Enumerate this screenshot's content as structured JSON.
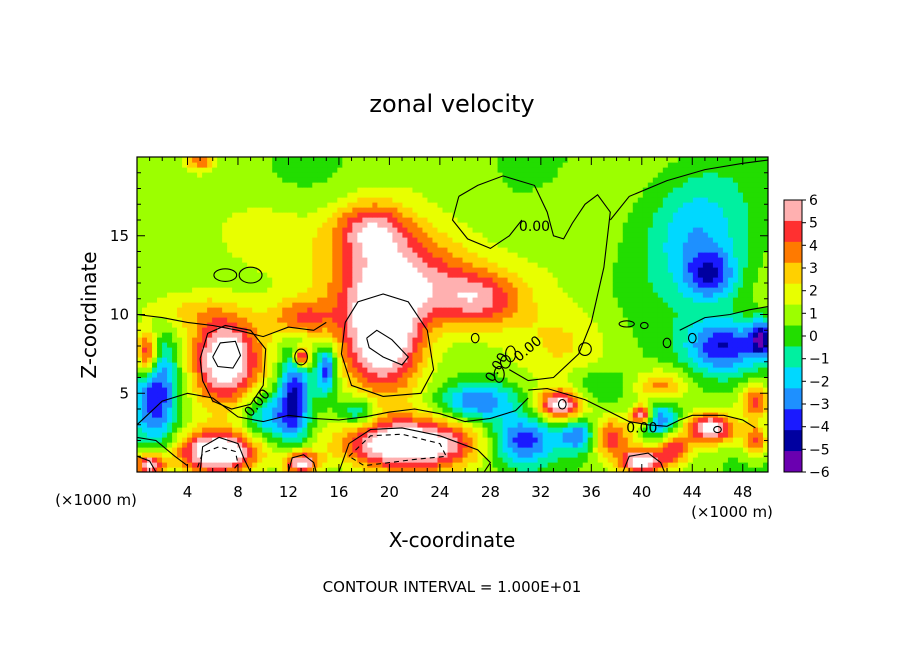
{
  "chart_data": {
    "type": "heatmap",
    "title": "zonal velocity",
    "xlabel": "X-coordinate",
    "ylabel": "Z-coordinate",
    "x_unit": "(×1000 m)",
    "y_unit": "(×1000 m)",
    "xlim": [
      0,
      50
    ],
    "ylim": [
      0,
      20
    ],
    "x_ticks": [
      "4",
      "8",
      "12",
      "16",
      "20",
      "24",
      "28",
      "32",
      "36",
      "40",
      "44",
      "48"
    ],
    "y_ticks": [
      "5",
      "10",
      "15"
    ],
    "colorbar": {
      "range": [
        -6,
        6
      ],
      "labels": [
        "6",
        "5",
        "4",
        "3",
        "2",
        "1",
        "0",
        "−1",
        "−2",
        "−3",
        "−4",
        "−5",
        "−6"
      ],
      "colors": [
        "#ffb0b0",
        "#ff3030",
        "#ff7a00",
        "#ffd000",
        "#e8ff00",
        "#9cff00",
        "#22dd00",
        "#00f0a0",
        "#00d8ff",
        "#1e90ff",
        "#1a1aff",
        "#0000a0",
        "#6a00b0"
      ]
    },
    "contour_labels": [
      "0.00",
      "0.00",
      "0.00",
      "0.00",
      "0.00"
    ],
    "footnote": "CONTOUR INTERVAL = 1.000E+01",
    "features": [
      {
        "x": 19.5,
        "y": 8.5,
        "value": 7,
        "rx": 3.2,
        "ry": 3.5
      },
      {
        "x": 7.0,
        "y": 7.2,
        "value": 7,
        "rx": 2.8,
        "ry": 2.8
      },
      {
        "x": 6.5,
        "y": 1.3,
        "value": 7,
        "rx": 3.2,
        "ry": 1.3
      },
      {
        "x": 21.5,
        "y": 1.8,
        "value": 7,
        "rx": 5.5,
        "ry": 1.6
      },
      {
        "x": 13.0,
        "y": 0.6,
        "value": 6,
        "rx": 1.4,
        "ry": 0.8
      },
      {
        "x": 1.0,
        "y": 0.5,
        "value": 6,
        "rx": 1.2,
        "ry": 0.8
      },
      {
        "x": 0.8,
        "y": 7.5,
        "value": 6,
        "rx": 0.9,
        "ry": 1.5
      },
      {
        "x": 13.0,
        "y": 7.3,
        "value": 6,
        "rx": 0.6,
        "ry": 0.6
      },
      {
        "x": 45.5,
        "y": 2.8,
        "value": 6,
        "rx": 2.0,
        "ry": 1.0
      },
      {
        "x": 33.5,
        "y": 4.3,
        "value": 6,
        "rx": 1.8,
        "ry": 1.0
      },
      {
        "x": 40.0,
        "y": 3.7,
        "value": 6,
        "rx": 0.8,
        "ry": 0.6
      },
      {
        "x": 40.0,
        "y": 0.7,
        "value": 6,
        "rx": 1.6,
        "ry": 0.8
      },
      {
        "x": 37.5,
        "y": 2.2,
        "value": 4,
        "rx": 1.6,
        "ry": 1.2
      },
      {
        "x": 42.5,
        "y": 1.5,
        "value": 4,
        "rx": 1.2,
        "ry": 1.0
      },
      {
        "x": 49.0,
        "y": 2.0,
        "value": 4,
        "rx": 1.0,
        "ry": 1.0
      },
      {
        "x": 41.5,
        "y": 5.5,
        "value": 3,
        "rx": 2.0,
        "ry": 1.0
      },
      {
        "x": 49.0,
        "y": 4.5,
        "value": 4,
        "rx": 1.2,
        "ry": 1.0
      },
      {
        "x": 21.0,
        "y": 12.5,
        "value": 5,
        "rx": 5.5,
        "ry": 3.0
      },
      {
        "x": 18.5,
        "y": 15.5,
        "value": 4,
        "rx": 3.0,
        "ry": 1.8
      },
      {
        "x": 27.0,
        "y": 11.0,
        "value": 4,
        "rx": 3.5,
        "ry": 1.8
      },
      {
        "x": 13.0,
        "y": 9.8,
        "value": 3,
        "rx": 2.5,
        "ry": 1.2
      },
      {
        "x": 3.5,
        "y": 10.3,
        "value": 2,
        "rx": 3.5,
        "ry": 1.5
      },
      {
        "x": 10.0,
        "y": 15.0,
        "value": 1.5,
        "rx": 4.0,
        "ry": 2.0
      },
      {
        "x": 5.0,
        "y": 19.8,
        "value": 3,
        "rx": 1.0,
        "ry": 0.6
      },
      {
        "x": 35.0,
        "y": 15.5,
        "value": 0.5,
        "rx": 3.0,
        "ry": 3.0
      },
      {
        "x": 34.0,
        "y": 8.0,
        "value": 1.5,
        "rx": 4.0,
        "ry": 2.5
      },
      {
        "x": 44.5,
        "y": 15.0,
        "value": -3,
        "rx": 4.0,
        "ry": 4.0
      },
      {
        "x": 45.5,
        "y": 12.5,
        "value": -3.5,
        "rx": 2.0,
        "ry": 1.5
      },
      {
        "x": 46.5,
        "y": 8.0,
        "value": -5,
        "rx": 3.0,
        "ry": 1.8
      },
      {
        "x": 49.5,
        "y": 8.5,
        "value": -5,
        "rx": 1.0,
        "ry": 1.2
      },
      {
        "x": 1.5,
        "y": 5.0,
        "value": -5,
        "rx": 1.8,
        "ry": 3.5
      },
      {
        "x": 12.5,
        "y": 5.0,
        "value": -5,
        "rx": 1.2,
        "ry": 2.8
      },
      {
        "x": 15.0,
        "y": 6.5,
        "value": -5,
        "rx": 0.8,
        "ry": 1.5
      },
      {
        "x": 10.5,
        "y": 3.5,
        "value": -3,
        "rx": 2.0,
        "ry": 1.5
      },
      {
        "x": 27.0,
        "y": 4.5,
        "value": -4,
        "rx": 3.0,
        "ry": 1.2
      },
      {
        "x": 30.5,
        "y": 2.0,
        "value": -4.5,
        "rx": 2.5,
        "ry": 1.5
      },
      {
        "x": 35.0,
        "y": 2.3,
        "value": -4,
        "rx": 1.5,
        "ry": 1.0
      },
      {
        "x": 41.5,
        "y": 3.3,
        "value": -4,
        "rx": 1.5,
        "ry": 1.2
      },
      {
        "x": 17.5,
        "y": 3.8,
        "value": -3,
        "rx": 1.5,
        "ry": 1.0
      },
      {
        "x": 36.5,
        "y": 5.5,
        "value": -1.5,
        "rx": 2.5,
        "ry": 1.2
      }
    ],
    "contours": [
      {
        "style": "solid",
        "points": [
          [
            25.5,
            17.5
          ],
          [
            27.0,
            18.2
          ],
          [
            29.0,
            18.8
          ],
          [
            31.5,
            18.2
          ],
          [
            32.5,
            16.5
          ],
          [
            33.0,
            15.0
          ],
          [
            33.8,
            14.8
          ],
          [
            34.5,
            15.8
          ],
          [
            35.5,
            17.0
          ],
          [
            36.5,
            17.6
          ],
          [
            37.5,
            16.5
          ],
          [
            37.0,
            13.0
          ],
          [
            36.0,
            9.5
          ],
          [
            35.0,
            7.5
          ],
          [
            33.0,
            6.0
          ],
          [
            31.0,
            5.8
          ],
          [
            29.5,
            6.5
          ]
        ]
      },
      {
        "style": "solid",
        "points": [
          [
            25.5,
            17.5
          ],
          [
            25.0,
            16.0
          ],
          [
            26.2,
            14.8
          ],
          [
            28.0,
            14.2
          ],
          [
            29.5,
            15.0
          ],
          [
            30.5,
            16.0
          ]
        ]
      },
      {
        "style": "solid",
        "points": [
          [
            37.5,
            16.0
          ],
          [
            39.0,
            17.5
          ],
          [
            42.0,
            18.5
          ],
          [
            45.0,
            19.2
          ],
          [
            48.0,
            19.6
          ],
          [
            50.0,
            19.8
          ]
        ]
      },
      {
        "style": "solid",
        "points": [
          [
            43.0,
            9.0
          ],
          [
            45.0,
            9.8
          ],
          [
            47.0,
            10.0
          ],
          [
            48.5,
            10.3
          ],
          [
            50.0,
            10.5
          ]
        ]
      },
      {
        "style": "solid",
        "points": [
          [
            0.0,
            10.0
          ],
          [
            2.0,
            9.8
          ],
          [
            4.0,
            9.5
          ],
          [
            6.0,
            9.3
          ],
          [
            8.0,
            9.0
          ],
          [
            10.0,
            8.6
          ],
          [
            12.0,
            9.2
          ],
          [
            14.0,
            9.0
          ],
          [
            15.0,
            9.5
          ]
        ]
      },
      {
        "style": "solid",
        "points": [
          [
            5.0,
            7.2
          ],
          [
            5.6,
            8.8
          ],
          [
            7.0,
            9.3
          ],
          [
            9.0,
            9.0
          ],
          [
            10.2,
            7.8
          ],
          [
            10.0,
            5.5
          ],
          [
            9.0,
            4.3
          ],
          [
            7.5,
            4.0
          ],
          [
            6.0,
            4.5
          ],
          [
            5.2,
            5.8
          ],
          [
            5.0,
            7.2
          ]
        ]
      },
      {
        "style": "solid",
        "points": [
          [
            6.0,
            7.3
          ],
          [
            6.6,
            8.2
          ],
          [
            7.8,
            8.3
          ],
          [
            8.2,
            7.4
          ],
          [
            7.6,
            6.6
          ],
          [
            6.4,
            6.7
          ],
          [
            6.0,
            7.3
          ]
        ]
      },
      {
        "style": "solid",
        "points": [
          [
            16.5,
            9.5
          ],
          [
            17.5,
            10.8
          ],
          [
            19.5,
            11.3
          ],
          [
            21.5,
            10.8
          ],
          [
            23.0,
            9.0
          ],
          [
            23.5,
            6.5
          ],
          [
            22.5,
            5.0
          ],
          [
            19.5,
            4.8
          ],
          [
            17.0,
            5.5
          ],
          [
            16.2,
            7.5
          ],
          [
            16.5,
            9.5
          ]
        ]
      },
      {
        "style": "solid",
        "points": [
          [
            18.2,
            8.5
          ],
          [
            19.0,
            9.0
          ],
          [
            20.2,
            8.4
          ],
          [
            21.5,
            7.3
          ],
          [
            21.0,
            6.8
          ],
          [
            19.5,
            7.3
          ],
          [
            18.4,
            7.9
          ],
          [
            18.2,
            8.5
          ]
        ]
      },
      {
        "style": "solid",
        "points": [
          [
            0.0,
            3.0
          ],
          [
            2.0,
            4.5
          ],
          [
            4.0,
            5.0
          ],
          [
            6.0,
            4.7
          ],
          [
            8.0,
            3.5
          ],
          [
            10.0,
            3.2
          ],
          [
            12.0,
            3.6
          ],
          [
            14.0,
            3.4
          ],
          [
            16.0,
            3.3
          ],
          [
            18.0,
            3.5
          ],
          [
            20.0,
            3.8
          ],
          [
            22.0,
            4.0
          ],
          [
            24.0,
            3.7
          ],
          [
            26.0,
            3.2
          ],
          [
            28.0,
            3.4
          ],
          [
            30.0,
            3.9
          ],
          [
            31.0,
            4.7
          ]
        ]
      },
      {
        "style": "solid",
        "points": [
          [
            0.0,
            2.2
          ],
          [
            1.5,
            2.0
          ],
          [
            3.0,
            1.0
          ],
          [
            4.0,
            0.4
          ]
        ]
      },
      {
        "style": "solid",
        "points": [
          [
            5.0,
            0.0
          ],
          [
            5.2,
            1.6
          ],
          [
            6.5,
            2.2
          ],
          [
            8.0,
            1.8
          ],
          [
            8.5,
            0.8
          ],
          [
            9.0,
            0.0
          ]
        ]
      },
      {
        "style": "solid",
        "points": [
          [
            12.0,
            0.0
          ],
          [
            12.3,
            0.9
          ],
          [
            13.2,
            1.1
          ],
          [
            14.0,
            0.6
          ],
          [
            14.2,
            0.0
          ]
        ]
      },
      {
        "style": "solid",
        "points": [
          [
            16.0,
            0.0
          ],
          [
            16.8,
            1.8
          ],
          [
            18.5,
            2.7
          ],
          [
            21.0,
            2.8
          ],
          [
            24.0,
            2.3
          ],
          [
            27.0,
            1.4
          ],
          [
            28.0,
            0.6
          ],
          [
            27.5,
            0.0
          ]
        ]
      },
      {
        "style": "dashed",
        "points": [
          [
            4.8,
            0.3
          ],
          [
            5.2,
            1.2
          ],
          [
            6.5,
            1.6
          ],
          [
            7.8,
            1.3
          ],
          [
            8.0,
            0.5
          ],
          [
            7.5,
            0.0
          ]
        ]
      },
      {
        "style": "dashed",
        "points": [
          [
            16.8,
            1.0
          ],
          [
            18.5,
            2.3
          ],
          [
            21.0,
            2.4
          ],
          [
            24.0,
            1.8
          ],
          [
            24.5,
            1.0
          ],
          [
            22.0,
            0.8
          ],
          [
            20.0,
            0.6
          ],
          [
            18.0,
            0.4
          ],
          [
            16.8,
            1.0
          ]
        ]
      },
      {
        "style": "solid",
        "points": [
          [
            31.0,
            5.2
          ],
          [
            32.5,
            5.3
          ],
          [
            35.5,
            4.6
          ],
          [
            37.5,
            3.8
          ],
          [
            39.0,
            3.2
          ],
          [
            40.5,
            3.0
          ],
          [
            42.0,
            2.9
          ],
          [
            43.0,
            3.3
          ],
          [
            44.0,
            3.6
          ],
          [
            46.5,
            3.6
          ],
          [
            48.0,
            3.3
          ],
          [
            49.0,
            2.8
          ]
        ]
      },
      {
        "style": "solid",
        "points": [
          [
            38.5,
            0.0
          ],
          [
            39.0,
            1.0
          ],
          [
            40.5,
            1.2
          ],
          [
            41.5,
            0.6
          ],
          [
            41.8,
            0.0
          ]
        ]
      },
      {
        "style": "solid",
        "points": [
          [
            0.0,
            1.0
          ],
          [
            1.0,
            0.7
          ],
          [
            1.5,
            0.0
          ]
        ]
      }
    ],
    "small_loops": [
      {
        "x": 7.0,
        "y": 12.5,
        "rx": 0.9,
        "ry": 0.4
      },
      {
        "x": 9.0,
        "y": 12.5,
        "rx": 0.9,
        "ry": 0.5
      },
      {
        "x": 13.0,
        "y": 7.3,
        "rx": 0.5,
        "ry": 0.5
      },
      {
        "x": 26.8,
        "y": 8.5,
        "rx": 0.3,
        "ry": 0.3
      },
      {
        "x": 28.7,
        "y": 6.2,
        "rx": 0.4,
        "ry": 0.5
      },
      {
        "x": 29.2,
        "y": 7.0,
        "rx": 0.4,
        "ry": 0.4
      },
      {
        "x": 29.6,
        "y": 7.5,
        "rx": 0.4,
        "ry": 0.5
      },
      {
        "x": 35.5,
        "y": 7.8,
        "rx": 0.5,
        "ry": 0.4
      },
      {
        "x": 38.8,
        "y": 9.4,
        "rx": 0.6,
        "ry": 0.2
      },
      {
        "x": 40.2,
        "y": 9.3,
        "rx": 0.3,
        "ry": 0.2
      },
      {
        "x": 42.0,
        "y": 8.2,
        "rx": 0.3,
        "ry": 0.3
      },
      {
        "x": 44.0,
        "y": 8.5,
        "rx": 0.3,
        "ry": 0.3
      },
      {
        "x": 46.0,
        "y": 2.7,
        "rx": 0.3,
        "ry": 0.2
      },
      {
        "x": 33.7,
        "y": 4.3,
        "rx": 0.3,
        "ry": 0.3
      }
    ],
    "grid": false
  }
}
